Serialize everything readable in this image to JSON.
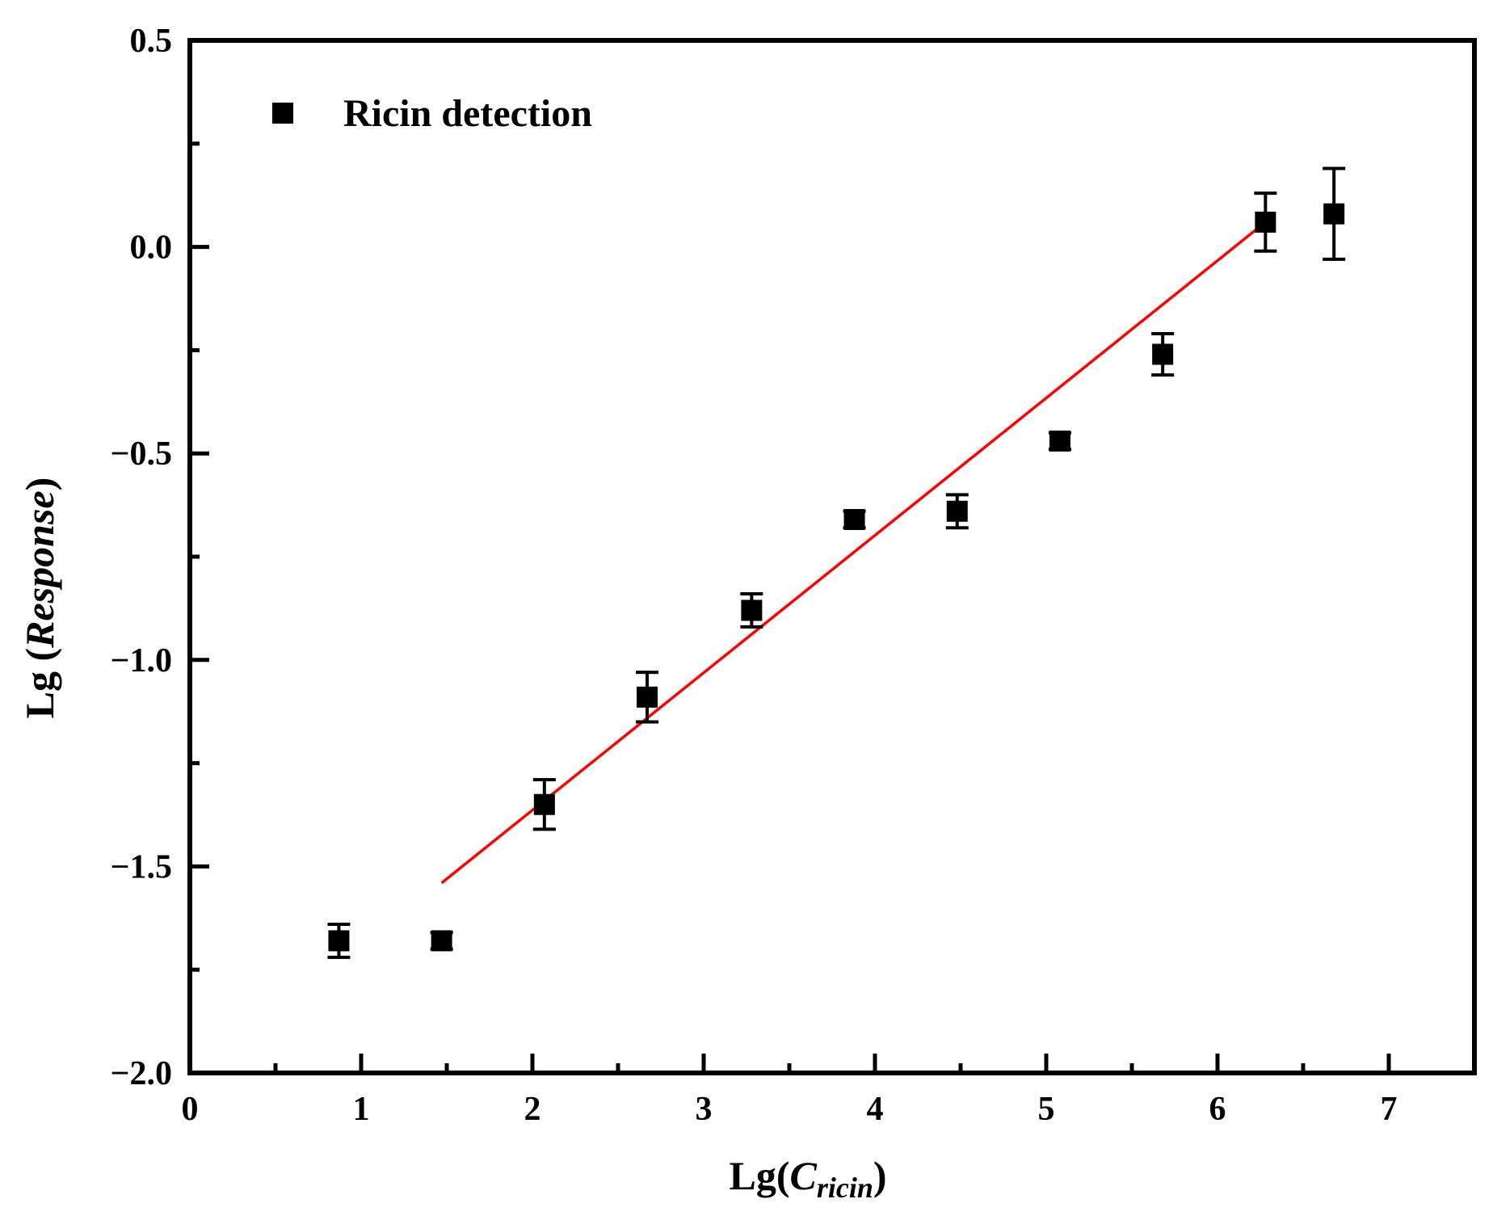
{
  "chart_data": {
    "type": "scatter",
    "xlabel": {
      "main": "Lg(",
      "italic": "C",
      "subscript": "ricin",
      "close": ")"
    },
    "ylabel": {
      "main": "Lg (",
      "italic": "Response",
      "close": ")"
    },
    "xlim": [
      0,
      7.5
    ],
    "ylim": [
      -2.0,
      0.5
    ],
    "xticks": [
      0,
      1,
      2,
      3,
      4,
      5,
      6,
      7
    ],
    "xtick_labels": [
      "0",
      "1",
      "2",
      "3",
      "4",
      "5",
      "6",
      "7"
    ],
    "yticks": [
      -2.0,
      -1.5,
      -1.0,
      -0.5,
      0.0,
      0.5
    ],
    "ytick_labels": [
      "−2.0",
      "−1.5",
      "−1.0",
      "−0.5",
      "0.0",
      "0.5"
    ],
    "grid": false,
    "legend_position": "top-left",
    "series": [
      {
        "name": "Ricin detection",
        "marker": "square",
        "color": "#000000",
        "x": [
          0.87,
          1.47,
          2.07,
          2.67,
          3.28,
          3.88,
          4.48,
          5.08,
          5.68,
          6.28,
          6.68
        ],
        "y": [
          -1.68,
          -1.68,
          -1.35,
          -1.09,
          -0.88,
          -0.66,
          -0.64,
          -0.47,
          -0.26,
          0.06,
          0.08
        ],
        "yerr": [
          0.04,
          0.02,
          0.06,
          0.06,
          0.04,
          0.02,
          0.04,
          0.02,
          0.05,
          0.07,
          0.11
        ]
      }
    ],
    "fit_line": {
      "color": "#ff0000",
      "x": [
        1.47,
        6.25
      ],
      "y": [
        -1.54,
        0.05
      ]
    }
  }
}
